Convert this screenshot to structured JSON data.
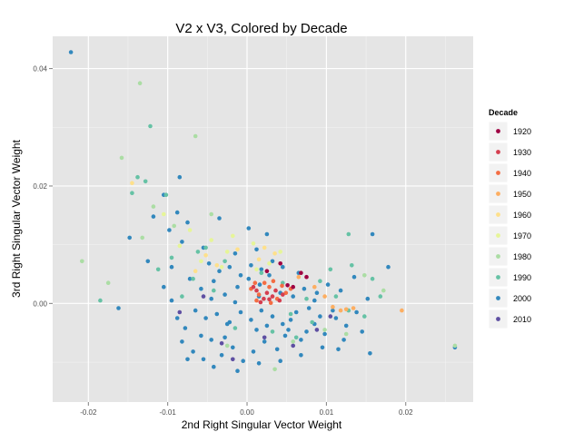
{
  "chart_data": {
    "type": "scatter",
    "title": "V2 x V3, Colored by Decade",
    "xlabel": "2nd Right Singular Vector Weight",
    "ylabel": "3rd Right Singular Vector Weight",
    "xlim": [
      -0.0245,
      0.0285
    ],
    "ylim": [
      -0.0168,
      0.0455
    ],
    "x_ticks": [
      -0.02,
      -0.01,
      0.0,
      0.01,
      0.02
    ],
    "x_tick_labels": [
      "-0.02",
      "-0.01",
      "0.00",
      "0.01",
      "0.02"
    ],
    "y_ticks": [
      0.0,
      0.02,
      0.04
    ],
    "y_tick_labels": [
      "0.00",
      "0.02",
      "0.04"
    ],
    "grid": true,
    "legend": {
      "title": "Decade",
      "placement": "right",
      "entries": [
        {
          "label": "1920",
          "color": "#9e0142"
        },
        {
          "label": "1930",
          "color": "#d53e4f"
        },
        {
          "label": "1940",
          "color": "#f46d43"
        },
        {
          "label": "1950",
          "color": "#fdae61"
        },
        {
          "label": "1960",
          "color": "#fee08b"
        },
        {
          "label": "1970",
          "color": "#e6f598"
        },
        {
          "label": "1980",
          "color": "#abdda4"
        },
        {
          "label": "1990",
          "color": "#66c2a5"
        },
        {
          "label": "2000",
          "color": "#3288bd"
        },
        {
          "label": "2010",
          "color": "#5e4fa2"
        }
      ]
    },
    "series": [
      {
        "name": "1920",
        "color": "#9e0142",
        "points": [
          [
            0.0025,
            0.0055
          ],
          [
            0.0068,
            0.0052
          ],
          [
            0.0042,
            0.0068
          ],
          [
            0.0058,
            0.0028
          ],
          [
            0.0075,
            0.0045
          ],
          [
            0.0051,
            0.0031
          ]
        ]
      },
      {
        "name": "1930",
        "color": "#d53e4f",
        "points": [
          [
            0.0012,
            0.0022
          ],
          [
            0.0021,
            0.0008
          ],
          [
            0.0032,
            0.0012
          ],
          [
            0.0025,
            0.0018
          ],
          [
            0.0041,
            0.0005
          ],
          [
            0.0008,
            0.0028
          ],
          [
            0.0017,
            0.0002
          ],
          [
            0.0036,
            0.0022
          ],
          [
            0.0028,
            0.0007
          ],
          [
            0.0045,
            0.0015
          ]
        ]
      },
      {
        "name": "1940",
        "color": "#f46d43",
        "points": [
          [
            0.0005,
            0.0025
          ],
          [
            0.0015,
            0.0015
          ],
          [
            0.0028,
            0.0028
          ],
          [
            0.0038,
            0.0008
          ],
          [
            0.0049,
            0.0018
          ],
          [
            0.0022,
            0.0035
          ],
          [
            0.0012,
            0.0005
          ],
          [
            0.0055,
            0.0025
          ],
          [
            0.0033,
            0.0038
          ],
          [
            0.001,
            0.0035
          ],
          [
            0.0044,
            0.003
          ],
          [
            0.003,
            0.0001
          ]
        ]
      },
      {
        "name": "1950",
        "color": "#fdae61",
        "points": [
          [
            0.0125,
            -0.001
          ],
          [
            0.0118,
            -0.0012
          ],
          [
            0.0134,
            -0.0008
          ],
          [
            0.0108,
            -0.0006
          ],
          [
            0.0195,
            -0.0012
          ],
          [
            0.0098,
            0.0012
          ],
          [
            0.0085,
            0.0028
          ],
          [
            0.0065,
            0.0045
          ]
        ]
      },
      {
        "name": "1960",
        "color": "#fee08b",
        "points": [
          [
            -0.0038,
            0.0065
          ],
          [
            -0.0052,
            0.0082
          ],
          [
            -0.0012,
            0.0092
          ],
          [
            0.0015,
            0.0075
          ],
          [
            0.0035,
            0.0085
          ],
          [
            -0.0145,
            0.0205
          ],
          [
            -0.0065,
            0.0055
          ],
          [
            0.0022,
            0.0095
          ]
        ]
      },
      {
        "name": "1970",
        "color": "#e6f598",
        "points": [
          [
            -0.0072,
            0.0125
          ],
          [
            -0.0045,
            0.0108
          ],
          [
            -0.0025,
            0.0088
          ],
          [
            0.0008,
            0.0102
          ],
          [
            -0.0058,
            0.0072
          ],
          [
            0.0028,
            0.0068
          ],
          [
            -0.0018,
            0.0115
          ],
          [
            -0.0085,
            0.0098
          ],
          [
            0.0042,
            0.0088
          ],
          [
            -0.0032,
            0.0062
          ],
          [
            0.0012,
            0.0058
          ],
          [
            -0.0105,
            0.0152
          ]
        ]
      },
      {
        "name": "1980",
        "color": "#abdda4",
        "points": [
          [
            -0.0135,
            0.0375
          ],
          [
            -0.0065,
            0.0285
          ],
          [
            -0.0158,
            0.0248
          ],
          [
            -0.0118,
            0.0165
          ],
          [
            -0.0092,
            0.0132
          ],
          [
            -0.0208,
            0.0072
          ],
          [
            -0.0175,
            0.0035
          ],
          [
            -0.0045,
            0.0152
          ],
          [
            0.0058,
            -0.0065
          ],
          [
            0.0125,
            -0.0052
          ],
          [
            0.0098,
            -0.0045
          ],
          [
            -0.0025,
            -0.0072
          ],
          [
            0.0148,
            0.0048
          ],
          [
            0.0262,
            -0.0072
          ],
          [
            0.0035,
            -0.0112
          ],
          [
            0.0172,
            0.0022
          ],
          [
            -0.0132,
            0.0112
          ]
        ]
      },
      {
        "name": "1990",
        "color": "#66c2a5",
        "points": [
          [
            -0.0122,
            0.0302
          ],
          [
            -0.0138,
            0.0215
          ],
          [
            -0.0128,
            0.0208
          ],
          [
            -0.0102,
            0.0185
          ],
          [
            -0.0145,
            0.0188
          ],
          [
            -0.0185,
            0.0005
          ],
          [
            -0.0095,
            0.0078
          ],
          [
            -0.0052,
            0.0095
          ],
          [
            -0.0028,
            0.0072
          ],
          [
            0.0018,
            0.0052
          ],
          [
            0.0045,
            0.0035
          ],
          [
            0.0075,
            0.0008
          ],
          [
            0.0092,
            0.0038
          ],
          [
            0.0112,
            0.0012
          ],
          [
            0.0132,
            0.0065
          ],
          [
            0.0158,
            0.0042
          ],
          [
            0.0128,
            -0.0012
          ],
          [
            0.0082,
            -0.0032
          ],
          [
            0.0055,
            -0.0018
          ],
          [
            0.0032,
            -0.0048
          ],
          [
            -0.0015,
            -0.0042
          ],
          [
            -0.0042,
            0.0022
          ],
          [
            -0.0068,
            0.0042
          ],
          [
            -0.0082,
            0.0012
          ],
          [
            -0.0062,
            0.0088
          ],
          [
            0.0105,
            0.0058
          ],
          [
            0.0148,
            -0.0022
          ],
          [
            0.0168,
            0.0012
          ],
          [
            0.0128,
            0.0118
          ],
          [
            -0.0112,
            0.0058
          ],
          [
            0.0062,
            -0.0058
          ]
        ]
      },
      {
        "name": "2000",
        "color": "#3288bd",
        "points": [
          [
            -0.0222,
            0.0428
          ],
          [
            -0.0085,
            0.0215
          ],
          [
            -0.0105,
            0.0185
          ],
          [
            -0.0148,
            0.0112
          ],
          [
            -0.0162,
            -0.0008
          ],
          [
            -0.0125,
            0.0072
          ],
          [
            -0.0095,
            0.0005
          ],
          [
            -0.0078,
            -0.0042
          ],
          [
            -0.0068,
            -0.0082
          ],
          [
            -0.0055,
            -0.0095
          ],
          [
            -0.0045,
            -0.0062
          ],
          [
            -0.0032,
            -0.0088
          ],
          [
            -0.0018,
            -0.0075
          ],
          [
            -0.0005,
            -0.0098
          ],
          [
            0.0008,
            -0.0082
          ],
          [
            0.0022,
            -0.0065
          ],
          [
            0.0038,
            -0.0078
          ],
          [
            0.0052,
            -0.0045
          ],
          [
            0.0068,
            -0.0062
          ],
          [
            0.0085,
            -0.0035
          ],
          [
            0.0098,
            -0.0052
          ],
          [
            0.0112,
            -0.0025
          ],
          [
            0.0125,
            -0.0038
          ],
          [
            0.0138,
            -0.0015
          ],
          [
            0.0152,
            0.0008
          ],
          [
            0.0158,
            0.0118
          ],
          [
            0.0178,
            0.0062
          ],
          [
            0.0155,
            -0.0085
          ],
          [
            0.0262,
            -0.0075
          ],
          [
            -0.0072,
            0.0042
          ],
          [
            -0.0058,
            0.0025
          ],
          [
            -0.0042,
            0.0038
          ],
          [
            -0.0028,
            0.0015
          ],
          [
            -0.0012,
            0.0028
          ],
          [
            0.0002,
            0.0042
          ],
          [
            0.0016,
            0.0032
          ],
          [
            0.0028,
            0.0048
          ],
          [
            0.0042,
            0.0018
          ],
          [
            0.0058,
            0.0012
          ],
          [
            0.0072,
            0.0025
          ],
          [
            0.0088,
            0.0018
          ],
          [
            0.0102,
            0.0032
          ],
          [
            0.0118,
            0.0022
          ],
          [
            -0.0065,
            -0.0012
          ],
          [
            -0.0052,
            -0.0025
          ],
          [
            -0.0038,
            -0.0018
          ],
          [
            -0.0022,
            -0.0032
          ],
          [
            -0.0008,
            -0.0015
          ],
          [
            0.0005,
            -0.0028
          ],
          [
            0.0018,
            -0.0012
          ],
          [
            0.0032,
            -0.0022
          ],
          [
            0.0045,
            -0.0035
          ],
          [
            0.0062,
            -0.0015
          ],
          [
            0.0078,
            -0.0008
          ],
          [
            0.0092,
            -0.0022
          ],
          [
            0.0108,
            -0.0012
          ],
          [
            -0.0048,
            0.0068
          ],
          [
            -0.0035,
            0.0055
          ],
          [
            -0.0022,
            0.0062
          ],
          [
            -0.0008,
            0.0048
          ],
          [
            0.0005,
            0.0065
          ],
          [
            0.0018,
            0.0058
          ],
          [
            0.0032,
            0.0072
          ],
          [
            -0.0088,
            0.0155
          ],
          [
            -0.0075,
            0.0138
          ],
          [
            -0.0118,
            0.0148
          ],
          [
            -0.0098,
            0.0125
          ],
          [
            -0.0082,
            0.0105
          ],
          [
            -0.0035,
            0.0145
          ],
          [
            0.0002,
            0.0128
          ],
          [
            0.0025,
            0.0118
          ],
          [
            -0.0058,
            -0.0055
          ],
          [
            -0.0028,
            -0.0058
          ],
          [
            0.0012,
            -0.0045
          ],
          [
            0.0048,
            -0.0055
          ],
          [
            0.0075,
            -0.0048
          ],
          [
            -0.0075,
            -0.0095
          ],
          [
            -0.0042,
            -0.0108
          ],
          [
            -0.0012,
            -0.0115
          ],
          [
            0.0015,
            -0.0102
          ],
          [
            0.0042,
            -0.0098
          ],
          [
            0.0068,
            -0.0088
          ],
          [
            0.0095,
            -0.0075
          ],
          [
            0.0122,
            -0.0062
          ],
          [
            -0.0055,
            0.0095
          ],
          [
            -0.0015,
            0.0085
          ],
          [
            0.0012,
            0.0092
          ],
          [
            0.0045,
            0.0062
          ],
          [
            0.0065,
            0.0052
          ],
          [
            -0.0095,
            0.0062
          ],
          [
            -0.0105,
            0.0028
          ],
          [
            -0.0088,
            -0.0025
          ],
          [
            -0.0082,
            -0.0065
          ],
          [
            0.0135,
            0.0045
          ],
          [
            0.0145,
            -0.0048
          ],
          [
            0.0115,
            -0.0078
          ],
          [
            -0.0025,
            -0.0035
          ],
          [
            0.0025,
            -0.0038
          ],
          [
            0.0055,
            -0.0028
          ],
          [
            0.0085,
            0.0005
          ],
          [
            -0.0045,
            0.0008
          ],
          [
            -0.0015,
            0.0002
          ],
          [
            0.0015,
            0.0012
          ]
        ]
      },
      {
        "name": "2010",
        "color": "#5e4fa2",
        "points": [
          [
            -0.0085,
            -0.0015
          ],
          [
            -0.0032,
            -0.0068
          ],
          [
            0.0022,
            -0.0058
          ],
          [
            0.0058,
            -0.0072
          ],
          [
            0.0088,
            -0.0045
          ],
          [
            -0.0055,
            0.0012
          ],
          [
            0.0105,
            -0.0022
          ],
          [
            -0.0018,
            -0.0095
          ]
        ]
      }
    ]
  }
}
